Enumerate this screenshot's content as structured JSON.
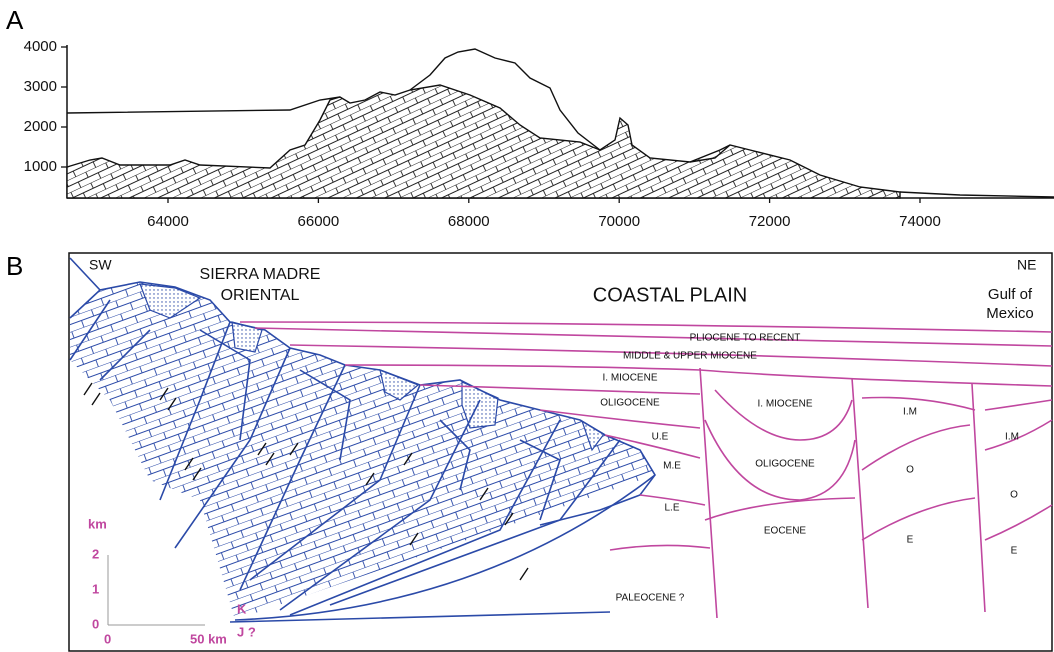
{
  "panel_a": {
    "label": "A",
    "xlim": [
      62657,
      75782
    ],
    "ylim": [
      225,
      4050
    ],
    "xticks": [
      64000,
      66000,
      68000,
      70000,
      72000,
      74000
    ],
    "yticks": [
      1000,
      2000,
      3000,
      4000
    ]
  },
  "panel_b": {
    "label": "B",
    "sw": "SW",
    "ne": "NE",
    "sierra_1": "SIERRA MADRE",
    "sierra_2": "ORIENTAL",
    "coastal_plain": "COASTAL PLAIN",
    "gulf_1": "Gulf of",
    "gulf_2": "Mexico",
    "units": [
      "PLIOCENE TO RECENT",
      "MIDDLE & UPPER MIOCENE",
      "I. MIOCENE",
      "OLIGOCENE",
      "U.E",
      "M.E",
      "L.E",
      "PALEOCENE ?",
      "I. MIOCENE",
      "OLIGOCENE",
      "EOCENE",
      "I.M",
      "O",
      "E",
      "I.M",
      "O",
      "E"
    ],
    "k": "K",
    "j": "J ?",
    "scale": {
      "unit_y": "km",
      "y_ticks": [
        "2",
        "1",
        "0"
      ],
      "x_start": "0",
      "x_end": "50 km"
    }
  }
}
